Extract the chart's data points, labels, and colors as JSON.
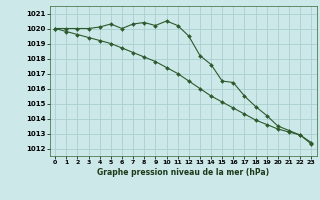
{
  "title": "Graphe pression niveau de la mer (hPa)",
  "bg_color": "#cce8e8",
  "grid_color": "#aacfcf",
  "line_color": "#2d5a2d",
  "xlim": [
    -0.5,
    23.5
  ],
  "ylim": [
    1011.5,
    1021.5
  ],
  "yticks": [
    1012,
    1013,
    1014,
    1015,
    1016,
    1017,
    1018,
    1019,
    1020,
    1021
  ],
  "xticks": [
    0,
    1,
    2,
    3,
    4,
    5,
    6,
    7,
    8,
    9,
    10,
    11,
    12,
    13,
    14,
    15,
    16,
    17,
    18,
    19,
    20,
    21,
    22,
    23
  ],
  "line1_x": [
    0,
    1,
    2,
    3,
    4,
    5,
    6,
    7,
    8,
    9,
    10,
    11,
    12,
    13,
    14,
    15,
    16,
    17,
    18,
    19,
    20,
    21,
    22,
    23
  ],
  "line1_y": [
    1020.0,
    1020.0,
    1020.0,
    1020.0,
    1020.1,
    1020.3,
    1020.0,
    1020.3,
    1020.4,
    1020.2,
    1020.5,
    1020.2,
    1019.5,
    1018.2,
    1017.6,
    1016.5,
    1016.4,
    1015.5,
    1014.8,
    1014.2,
    1013.5,
    1013.2,
    1012.9,
    1012.3
  ],
  "line2_x": [
    0,
    1,
    2,
    3,
    4,
    5,
    6,
    7,
    8,
    9,
    10,
    11,
    12,
    13,
    14,
    15,
    16,
    17,
    18,
    19,
    20,
    21,
    22,
    23
  ],
  "line2_y": [
    1020.0,
    1019.8,
    1019.6,
    1019.4,
    1019.2,
    1019.0,
    1018.7,
    1018.4,
    1018.1,
    1017.8,
    1017.4,
    1017.0,
    1016.5,
    1016.0,
    1015.5,
    1015.1,
    1014.7,
    1014.3,
    1013.9,
    1013.6,
    1013.3,
    1013.1,
    1012.9,
    1012.4
  ]
}
